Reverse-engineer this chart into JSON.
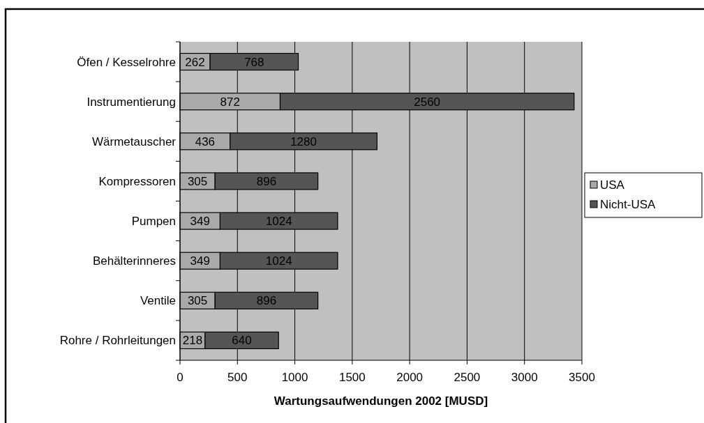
{
  "chart_data": {
    "type": "bar",
    "orientation": "horizontal",
    "stacked": true,
    "xlabel": "Wartungsaufwendungen 2002 [MUSD]",
    "categories": [
      "Öfen / Kesselrohre",
      "Instrumentierung",
      "Wärmetauscher",
      "Kompressoren",
      "Pumpen",
      "Behälterinneres",
      "Ventile",
      "Rohre / Rohrleitungen"
    ],
    "series": [
      {
        "name": "USA",
        "color": "#a9a9a9",
        "values": [
          262,
          872,
          436,
          305,
          349,
          349,
          305,
          218
        ]
      },
      {
        "name": "Nicht-USA",
        "color": "#555555",
        "values": [
          768,
          2560,
          1280,
          896,
          1024,
          1024,
          896,
          640
        ]
      }
    ],
    "xlim": [
      0,
      3500
    ],
    "xticks": [
      0,
      500,
      1000,
      1500,
      2000,
      2500,
      3000,
      3500
    ],
    "grid": "x",
    "legend": "right",
    "data_labels": true
  }
}
